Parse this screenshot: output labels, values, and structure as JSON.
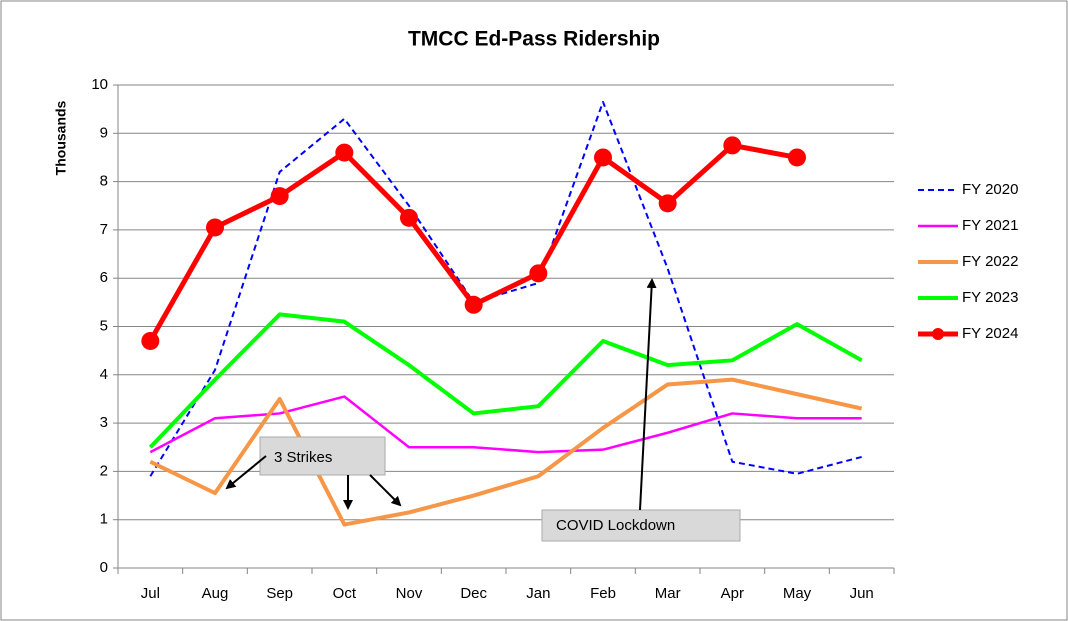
{
  "chart_data": {
    "type": "line",
    "title": "TMCC Ed-Pass Ridership",
    "y_label": "Thousands",
    "categories": [
      "Jul",
      "Aug",
      "Sep",
      "Oct",
      "Nov",
      "Dec",
      "Jan",
      "Feb",
      "Mar",
      "Apr",
      "May",
      "Jun"
    ],
    "series": [
      {
        "name": "FY 2020",
        "color": "#0000ff",
        "line_style": "dashed",
        "line_width": 2,
        "values": [
          1.9,
          4.1,
          8.2,
          9.3,
          7.5,
          5.5,
          5.9,
          9.65,
          6.2,
          2.2,
          1.95,
          2.3
        ]
      },
      {
        "name": "FY 2021",
        "color": "#ff00ff",
        "line_style": "solid",
        "line_width": 2.5,
        "values": [
          2.4,
          3.1,
          3.2,
          3.55,
          2.5,
          2.5,
          2.4,
          2.45,
          2.8,
          3.2,
          3.1,
          3.1
        ]
      },
      {
        "name": "FY 2022",
        "color": "#f79646",
        "line_style": "solid",
        "line_width": 4,
        "values": [
          2.2,
          1.55,
          3.5,
          0.9,
          1.15,
          1.5,
          1.9,
          2.9,
          3.8,
          3.9,
          3.6,
          3.3
        ]
      },
      {
        "name": "FY 2023",
        "color": "#00ff00",
        "line_style": "solid",
        "line_width": 4,
        "values": [
          2.5,
          3.9,
          5.25,
          5.1,
          4.2,
          3.2,
          3.35,
          4.7,
          4.2,
          4.3,
          5.05,
          4.3
        ]
      },
      {
        "name": "FY 2024",
        "color": "#ff0000",
        "line_style": "solid",
        "line_width": 5,
        "marker": "circle",
        "values": [
          4.7,
          7.05,
          7.7,
          8.6,
          7.25,
          5.45,
          6.1,
          8.5,
          7.55,
          8.75,
          8.5,
          null
        ]
      }
    ],
    "ylim": [
      0,
      10
    ],
    "yticks": [
      0,
      1,
      2,
      3,
      4,
      5,
      6,
      7,
      8,
      9,
      10
    ],
    "grid": true,
    "legend": "right",
    "annotations": [
      {
        "text": "3 Strikes"
      },
      {
        "text": "COVID Lockdown"
      }
    ]
  }
}
